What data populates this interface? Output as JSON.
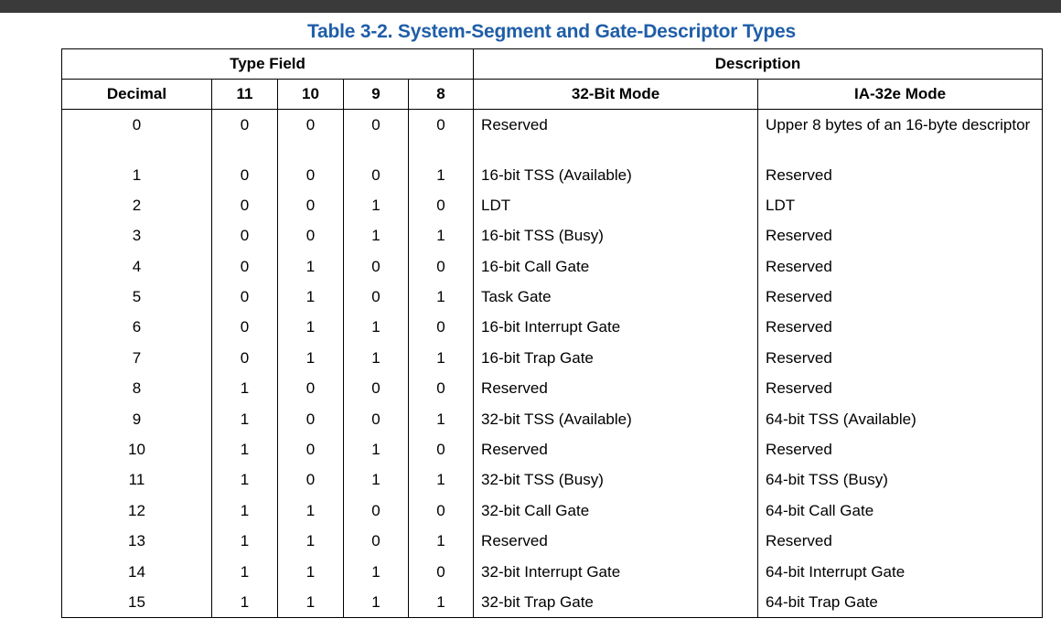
{
  "title": "Table 3-2.  System-Segment and Gate-Descriptor Types",
  "table": {
    "groups": [
      "Type Field",
      "Description"
    ],
    "columns": [
      "Decimal",
      "11",
      "10",
      "9",
      "8",
      "32-Bit Mode",
      "IA-32e Mode"
    ],
    "rows": [
      [
        0,
        0,
        0,
        0,
        0,
        "Reserved",
        "Upper 8 bytes of an 16-byte descriptor"
      ],
      [
        1,
        0,
        0,
        0,
        1,
        "16-bit TSS (Available)",
        "Reserved"
      ],
      [
        2,
        0,
        0,
        1,
        0,
        "LDT",
        "LDT"
      ],
      [
        3,
        0,
        0,
        1,
        1,
        "16-bit TSS (Busy)",
        "Reserved"
      ],
      [
        4,
        0,
        1,
        0,
        0,
        "16-bit Call Gate",
        "Reserved"
      ],
      [
        5,
        0,
        1,
        0,
        1,
        "Task Gate",
        "Reserved"
      ],
      [
        6,
        0,
        1,
        1,
        0,
        "16-bit Interrupt Gate",
        "Reserved"
      ],
      [
        7,
        0,
        1,
        1,
        1,
        "16-bit Trap Gate",
        "Reserved"
      ],
      [
        8,
        1,
        0,
        0,
        0,
        "Reserved",
        "Reserved"
      ],
      [
        9,
        1,
        0,
        0,
        1,
        "32-bit TSS (Available)",
        "64-bit TSS (Available)"
      ],
      [
        10,
        1,
        0,
        1,
        0,
        "Reserved",
        "Reserved"
      ],
      [
        11,
        1,
        0,
        1,
        1,
        "32-bit TSS (Busy)",
        "64-bit TSS (Busy)"
      ],
      [
        12,
        1,
        1,
        0,
        0,
        "32-bit Call Gate",
        "64-bit Call Gate"
      ],
      [
        13,
        1,
        1,
        0,
        1,
        "Reserved",
        "Reserved"
      ],
      [
        14,
        1,
        1,
        1,
        0,
        "32-bit Interrupt Gate",
        "64-bit Interrupt Gate"
      ],
      [
        15,
        1,
        1,
        1,
        1,
        "32-bit Trap Gate",
        "64-bit Trap Gate"
      ]
    ]
  }
}
